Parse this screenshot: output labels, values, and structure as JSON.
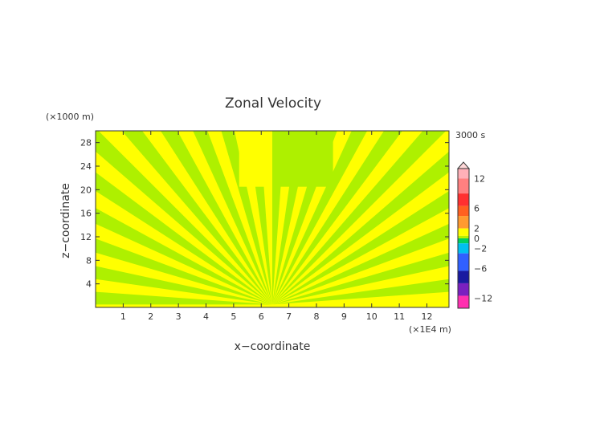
{
  "chart_data": {
    "type": "heatmap",
    "title": "Zonal Velocity",
    "xlabel": "x−coordinate",
    "ylabel": "z−coordinate",
    "x_unit": "(×1E4 m)",
    "y_unit": "(×1000 m)",
    "time_label": "3000 s",
    "xlim": [
      0,
      12.8
    ],
    "ylim": [
      0,
      30
    ],
    "x_ticks": [
      1,
      2,
      3,
      4,
      5,
      6,
      7,
      8,
      9,
      10,
      11,
      12
    ],
    "y_ticks": [
      4,
      8,
      12,
      16,
      20,
      24,
      28
    ],
    "colorbar": {
      "tick_labels": [
        "12",
        "6",
        "2",
        "0",
        "−2",
        "−6",
        "−12"
      ],
      "tick_values": [
        12,
        6,
        2,
        0,
        -2,
        -6,
        -12
      ],
      "range": [
        -14,
        14
      ],
      "colors": {
        "top_arrow": "#ffd8d8",
        "light_pink": "#ffb0b8",
        "pink": "#ff8080",
        "red": "#ff3030",
        "orange_red": "#ff6020",
        "orange": "#ff9a30",
        "yellow": "#ffff00",
        "yellow_green": "#b8f000",
        "green": "#00d060",
        "cyan": "#00c0f0",
        "blue": "#3060ff",
        "navy": "#1a1aa0",
        "purple": "#7a20c0",
        "magenta": "#ff30b0"
      }
    },
    "field_colors": {
      "positive_small": "#ffff00",
      "negative_small": "#aef000"
    },
    "grid": false
  }
}
